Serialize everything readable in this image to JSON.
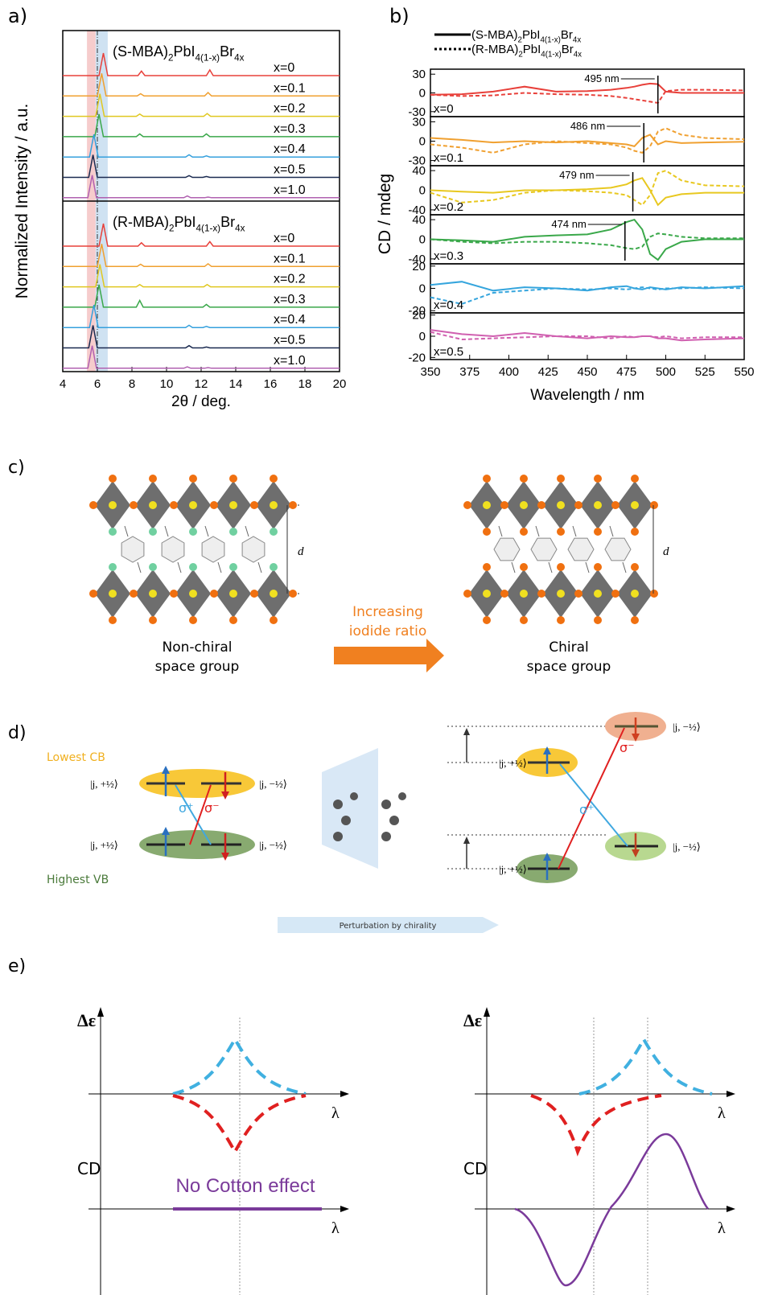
{
  "chart_data": [
    {
      "type": "line",
      "panel_label": "a)",
      "x_label": "2θ / deg.",
      "y_label": "Normalized Intensity / a.u.",
      "xlim": [
        4,
        20
      ],
      "xticks": [
        4,
        6,
        8,
        10,
        12,
        14,
        16,
        18,
        20
      ],
      "highlight_bands": [
        {
          "range": [
            5.4,
            5.9
          ],
          "color": "#f6cccc"
        },
        {
          "range": [
            5.9,
            6.6
          ],
          "color": "#cfe2f2"
        }
      ],
      "reference_line_x": 6.0,
      "subplots": [
        {
          "title_parts": [
            "(S-MBA)",
            "2",
            "PbI",
            "4(1-x)",
            "Br",
            "4x"
          ],
          "series": [
            {
              "name": "x=0",
              "color": "#e8403a",
              "x": [
                4,
                6.1,
                6.35,
                6.6,
                8.35,
                8.55,
                8.75,
                12.3,
                12.5,
                12.7,
                20
              ],
              "values": [
                0,
                0,
                1,
                0,
                0,
                0.2,
                0,
                0,
                0.25,
                0,
                0
              ]
            },
            {
              "name": "x=0.1",
              "color": "#f0a030",
              "x": [
                4,
                6,
                6.25,
                6.5,
                8.3,
                8.5,
                8.7,
                12.2,
                12.4,
                12.6,
                20
              ],
              "values": [
                0,
                0,
                1,
                0,
                0,
                0.1,
                0,
                0,
                0.15,
                0,
                0
              ]
            },
            {
              "name": "x=0.2",
              "color": "#e0c820",
              "x": [
                4,
                5.9,
                6.15,
                6.4,
                8.25,
                8.45,
                8.65,
                12.15,
                12.35,
                12.55,
                20
              ],
              "values": [
                0,
                0,
                1,
                0,
                0,
                0.1,
                0,
                0,
                0.12,
                0,
                0
              ]
            },
            {
              "name": "x=0.3",
              "color": "#3aa84a",
              "x": [
                4,
                5.85,
                6.1,
                6.35,
                8.25,
                8.45,
                8.65,
                12.1,
                12.3,
                12.5,
                20
              ],
              "values": [
                0,
                0,
                1,
                0,
                0,
                0.12,
                0,
                0,
                0.12,
                0,
                0
              ]
            },
            {
              "name": "x=0.4",
              "color": "#35a0dd",
              "x": [
                4,
                5.55,
                5.8,
                6.05,
                11.1,
                11.3,
                11.5,
                12.1,
                12.3,
                12.5,
                20
              ],
              "values": [
                0,
                0,
                1,
                0,
                0,
                0.1,
                0,
                0,
                0.05,
                0,
                0
              ]
            },
            {
              "name": "x=0.5",
              "color": "#1a2a50",
              "x": [
                4,
                5.5,
                5.75,
                6,
                11.1,
                11.3,
                11.5,
                12.1,
                12.3,
                12.5,
                20
              ],
              "values": [
                0,
                0,
                1,
                0,
                0,
                0.08,
                0,
                0,
                0.04,
                0,
                0
              ]
            },
            {
              "name": "x=1.0",
              "color": "#b060b0",
              "x": [
                4,
                5.45,
                5.7,
                5.95,
                11,
                11.2,
                11.4,
                12.2,
                12.4,
                12.6,
                20
              ],
              "values": [
                0,
                0,
                1,
                0,
                0,
                0.08,
                0,
                0,
                0.03,
                0,
                0
              ]
            }
          ]
        },
        {
          "title_parts": [
            "(R-MBA)",
            "2",
            "PbI",
            "4(1-x)",
            "Br",
            "4x"
          ],
          "series": [
            {
              "name": "x=0",
              "color": "#e8403a",
              "x": [
                4,
                6.1,
                6.35,
                6.6,
                8.35,
                8.55,
                8.75,
                12.3,
                12.5,
                12.7,
                20
              ],
              "values": [
                0,
                0,
                1,
                0,
                0,
                0.15,
                0,
                0,
                0.2,
                0,
                0
              ]
            },
            {
              "name": "x=0.1",
              "color": "#f0a030",
              "x": [
                4,
                6,
                6.25,
                6.5,
                8.3,
                8.5,
                8.7,
                12.2,
                12.4,
                12.6,
                20
              ],
              "values": [
                0,
                0,
                1,
                0,
                0,
                0.1,
                0,
                0,
                0.12,
                0,
                0
              ]
            },
            {
              "name": "x=0.2",
              "color": "#e0c820",
              "x": [
                4,
                5.9,
                6.15,
                6.4,
                8.25,
                8.45,
                8.65,
                12.15,
                12.35,
                12.55,
                20
              ],
              "values": [
                0,
                0,
                1,
                0,
                0,
                0.1,
                0,
                0,
                0.1,
                0,
                0
              ]
            },
            {
              "name": "x=0.3",
              "color": "#3aa84a",
              "x": [
                4,
                5.85,
                6.1,
                6.35,
                8.25,
                8.45,
                8.65,
                12.1,
                12.3,
                12.5,
                20
              ],
              "values": [
                0,
                0,
                1,
                0,
                0,
                0.3,
                0,
                0,
                0.12,
                0,
                0
              ]
            },
            {
              "name": "x=0.4",
              "color": "#35a0dd",
              "x": [
                4,
                5.55,
                5.8,
                6.05,
                11.1,
                11.3,
                11.5,
                12.1,
                12.3,
                12.5,
                20
              ],
              "values": [
                0,
                0,
                1,
                0,
                0,
                0.1,
                0,
                0,
                0.05,
                0,
                0
              ]
            },
            {
              "name": "x=0.5",
              "color": "#1a2a50",
              "x": [
                4,
                5.5,
                5.75,
                6,
                11.1,
                11.3,
                11.5,
                12.1,
                12.3,
                12.5,
                20
              ],
              "values": [
                0,
                0,
                1,
                0,
                0,
                0.1,
                0,
                0,
                0.04,
                0,
                0
              ]
            },
            {
              "name": "x=1.0",
              "color": "#b060b0",
              "x": [
                4,
                5.45,
                5.7,
                5.95,
                11,
                11.2,
                11.4,
                12.2,
                12.4,
                12.6,
                20
              ],
              "values": [
                0,
                0,
                1,
                0,
                0,
                0.06,
                0,
                0,
                0.03,
                0,
                0
              ]
            }
          ]
        }
      ]
    },
    {
      "type": "line",
      "panel_label": "b)",
      "x_label": "Wavelength / nm",
      "y_label": "CD / mdeg",
      "xlim": [
        350,
        550
      ],
      "xticks": [
        350,
        375,
        400,
        425,
        450,
        475,
        500,
        525,
        550
      ],
      "legend": [
        {
          "parts": [
            "(S-MBA)",
            "2",
            "PbI",
            "4(1-x)",
            "Br",
            "4x"
          ],
          "style": "solid"
        },
        {
          "parts": [
            "(R-MBA)",
            "2",
            "PbI",
            "4(1-x)",
            "Br",
            "4x"
          ],
          "style": "dashed"
        }
      ],
      "x": [
        350,
        370,
        390,
        410,
        430,
        450,
        465,
        475,
        480,
        485,
        490,
        495,
        500,
        510,
        525,
        550
      ],
      "subplots": [
        {
          "label": "x=0",
          "ylim": [
            -38,
            38
          ],
          "yticks": [
            30,
            0,
            -30
          ],
          "annotation": {
            "text": "495 nm",
            "x": 495
          },
          "series": [
            {
              "style": "solid",
              "color": "#e8403a",
              "values": [
                -3,
                -2,
                2,
                10,
                2,
                3,
                5,
                8,
                10,
                13,
                15,
                14,
                2,
                0,
                0,
                0
              ]
            },
            {
              "style": "dashed",
              "color": "#e8403a",
              "values": [
                -3,
                -5,
                -4,
                0,
                -2,
                -3,
                -5,
                -8,
                -10,
                -12,
                -14,
                -16,
                3,
                5,
                5,
                4
              ]
            }
          ]
        },
        {
          "label": "x=0.1",
          "ylim": [
            -38,
            38
          ],
          "yticks": [
            30,
            0,
            -30
          ],
          "annotation": {
            "text": "486 nm",
            "x": 486
          },
          "series": [
            {
              "style": "solid",
              "color": "#f0a030",
              "values": [
                5,
                2,
                -2,
                0,
                -2,
                0,
                -3,
                -5,
                -8,
                5,
                10,
                -5,
                0,
                -3,
                -2,
                -1
              ]
            },
            {
              "style": "dashed",
              "color": "#f0a030",
              "values": [
                -5,
                -10,
                -18,
                -5,
                0,
                -3,
                -5,
                -10,
                -15,
                -18,
                -8,
                15,
                20,
                10,
                5,
                3
              ]
            }
          ]
        },
        {
          "label": "x=0.2",
          "ylim": [
            -50,
            50
          ],
          "yticks": [
            40,
            0,
            -40
          ],
          "annotation": {
            "text": "479 nm",
            "x": 479
          },
          "series": [
            {
              "style": "solid",
              "color": "#e8c820",
              "values": [
                0,
                -3,
                -5,
                0,
                0,
                2,
                5,
                12,
                20,
                25,
                0,
                -30,
                -15,
                -8,
                -5,
                -5
              ]
            },
            {
              "style": "dashed",
              "color": "#e8c820",
              "values": [
                -5,
                -25,
                -20,
                -5,
                0,
                -2,
                -5,
                -10,
                -20,
                -30,
                -10,
                35,
                40,
                20,
                10,
                8
              ]
            }
          ]
        },
        {
          "label": "x=0.3",
          "ylim": [
            -50,
            50
          ],
          "yticks": [
            40,
            0,
            -40
          ],
          "annotation": {
            "text": "474 nm",
            "x": 474
          },
          "series": [
            {
              "style": "solid",
              "color": "#3aa84a",
              "values": [
                0,
                -2,
                -5,
                5,
                8,
                10,
                20,
                35,
                40,
                20,
                -30,
                -42,
                -20,
                -5,
                0,
                0
              ]
            },
            {
              "style": "dashed",
              "color": "#3aa84a",
              "values": [
                0,
                -5,
                -8,
                -5,
                -5,
                -8,
                -12,
                -18,
                -20,
                -15,
                5,
                12,
                10,
                5,
                2,
                2
              ]
            }
          ]
        },
        {
          "label": "x=0.4",
          "ylim": [
            -22,
            22
          ],
          "yticks": [
            20,
            0,
            -20
          ],
          "series": [
            {
              "style": "solid",
              "color": "#35a5dd",
              "values": [
                3,
                6,
                -2,
                1,
                0,
                -2,
                1,
                2,
                0,
                -1,
                1,
                0,
                -1,
                1,
                0,
                2
              ]
            },
            {
              "style": "dashed",
              "color": "#35a5dd",
              "values": [
                -8,
                -14,
                -4,
                -2,
                0,
                -1,
                0,
                -1,
                0,
                1,
                0,
                -1,
                0,
                0,
                1,
                0
              ]
            }
          ]
        },
        {
          "label": "x=0.5",
          "ylim": [
            -22,
            22
          ],
          "yticks": [
            20,
            0,
            -20
          ],
          "series": [
            {
              "style": "solid",
              "color": "#d060b0",
              "values": [
                6,
                2,
                0,
                3,
                0,
                -2,
                0,
                -1,
                -1,
                0,
                0,
                -2,
                -2,
                -4,
                -3,
                -2
              ]
            },
            {
              "style": "dashed",
              "color": "#d060b0",
              "values": [
                4,
                -3,
                -2,
                -1,
                0,
                0,
                -2,
                0,
                -1,
                0,
                0,
                -1,
                0,
                -2,
                -1,
                -1
              ]
            }
          ]
        }
      ]
    }
  ],
  "panel_c": {
    "label": "c)",
    "d": "d",
    "left_caption": [
      "Non-chiral",
      "space group"
    ],
    "arrow_label": [
      "Increasing",
      "iodide ratio"
    ],
    "right_caption": [
      "Chiral",
      "space group"
    ]
  },
  "panel_d": {
    "label": "d)",
    "lowest_cb": "Lowest CB",
    "highest_vb": "Highest VB",
    "ket_plus": "|j, +½⟩",
    "ket_minus": "|j, −½⟩",
    "sigma_plus": "σ⁺",
    "sigma_minus": "σ⁻",
    "arrow_label": "Perturbation by chirality"
  },
  "panel_e": {
    "label": "e)",
    "delta_epsilon": "Δε",
    "lambda": "λ",
    "cd": "CD",
    "no_cotton": "No Cotton effect"
  }
}
